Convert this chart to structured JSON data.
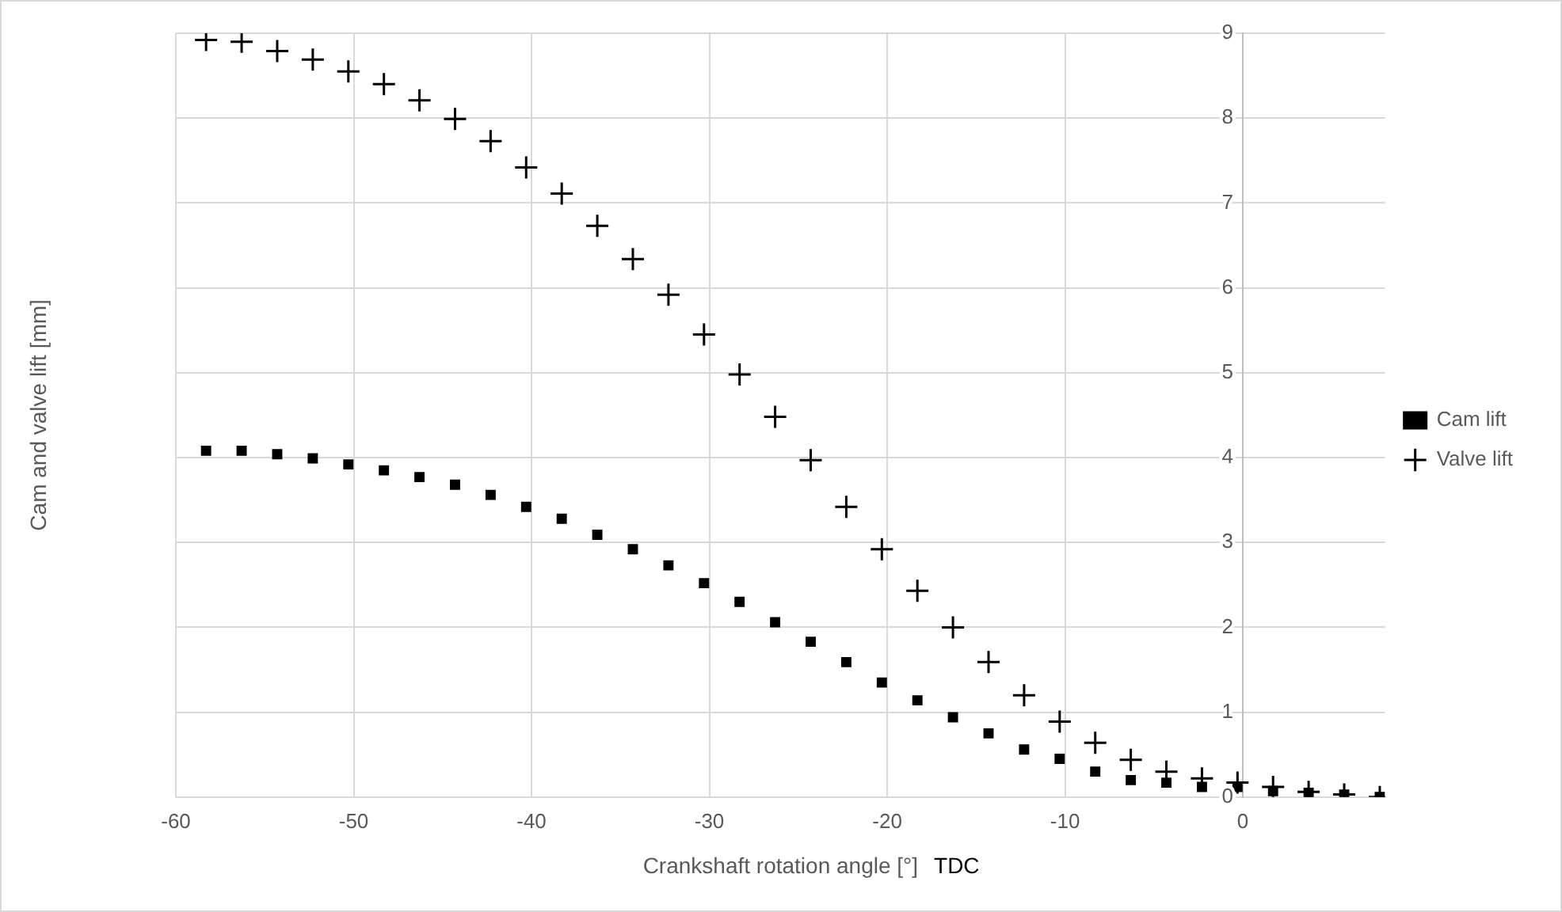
{
  "chart_data": {
    "type": "scatter",
    "xlabel": "Crankshaft rotation angle [°]",
    "ylabel": "Cam and valve lift [mm]",
    "annotations": [
      "TDC"
    ],
    "x": [
      -58.3,
      -56.3,
      -54.3,
      -52.3,
      -50.3,
      -48.3,
      -46.3,
      -44.3,
      -42.3,
      -40.3,
      -38.3,
      -36.3,
      -34.3,
      -32.3,
      -30.3,
      -28.3,
      -26.3,
      -24.3,
      -22.3,
      -20.3,
      -18.3,
      -16.3,
      -14.3,
      -12.3,
      -10.3,
      -8.3,
      -6.3,
      -4.3,
      -2.3,
      -0.3,
      1.7,
      3.7,
      5.7,
      7.7
    ],
    "series": [
      {
        "name": "Cam lift",
        "color": "#000000",
        "marker": "square",
        "values": [
          4.08,
          4.08,
          4.04,
          3.99,
          3.92,
          3.85,
          3.77,
          3.68,
          3.56,
          3.42,
          3.28,
          3.09,
          2.92,
          2.73,
          2.52,
          2.3,
          2.06,
          1.83,
          1.59,
          1.35,
          1.14,
          0.94,
          0.75,
          0.56,
          0.45,
          0.3,
          0.2,
          0.17,
          0.12,
          0.12,
          0.07,
          0.05,
          0.03,
          0.0
        ]
      },
      {
        "name": "Valve lift",
        "color": "#000000",
        "marker": "cross",
        "values": [
          8.92,
          8.9,
          8.79,
          8.69,
          8.55,
          8.4,
          8.21,
          7.99,
          7.73,
          7.42,
          7.11,
          6.73,
          6.34,
          5.92,
          5.45,
          4.98,
          4.48,
          3.97,
          3.42,
          2.92,
          2.43,
          2.0,
          1.59,
          1.2,
          0.89,
          0.64,
          0.44,
          0.3,
          0.22,
          0.17,
          0.12,
          0.06,
          0.03,
          0.0
        ]
      }
    ],
    "xlim": [
      -60,
      8
    ],
    "xticks": [
      -60,
      -50,
      -40,
      -30,
      -20,
      -10,
      0
    ],
    "ylim": [
      0,
      9
    ],
    "yticks": [
      0,
      1,
      2,
      3,
      4,
      5,
      6,
      7,
      8,
      9
    ],
    "grid": true,
    "legend": "right"
  }
}
